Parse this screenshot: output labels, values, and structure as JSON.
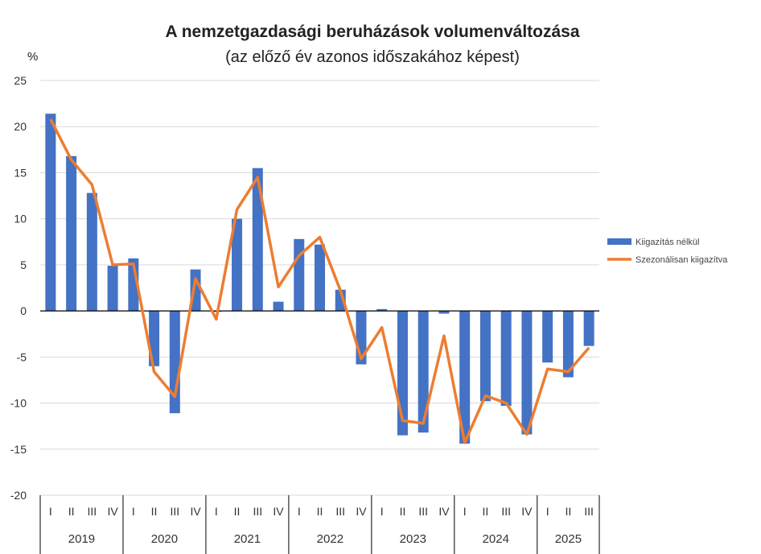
{
  "chart_data": {
    "type": "bar+line",
    "title": "A nemzetgazdasági beruházások volumenváltozása",
    "subtitle": "(az előző év azonos időszakához képest)",
    "ylabel": "%",
    "ylim": [
      -20,
      25
    ],
    "yticks": [
      25,
      20,
      15,
      10,
      5,
      0,
      -5,
      -10,
      -15,
      -20
    ],
    "grid": true,
    "legend_position": "bottom",
    "years": [
      "2019",
      "2020",
      "2021",
      "2022",
      "2023",
      "2024",
      "2025"
    ],
    "quarters_per_year": [
      4,
      4,
      4,
      4,
      4,
      4,
      3
    ],
    "categories": [
      "I",
      "II",
      "III",
      "IV",
      "I",
      "II",
      "III",
      "IV",
      "I",
      "II",
      "III",
      "IV",
      "I",
      "II",
      "III",
      "IV",
      "I",
      "II",
      "III",
      "IV",
      "I",
      "II",
      "III",
      "IV",
      "I",
      "II",
      "III"
    ],
    "series": [
      {
        "name": "Kiigazítás nélkül",
        "type": "bar",
        "color": "#4472C4",
        "values": [
          21.4,
          16.8,
          12.8,
          4.9,
          5.7,
          -6.0,
          -11.1,
          4.5,
          -0.1,
          10.0,
          15.5,
          1.0,
          7.8,
          7.2,
          2.3,
          -5.8,
          0.2,
          -13.5,
          -13.2,
          -0.3,
          -14.4,
          -9.8,
          -10.3,
          -13.4,
          -5.6,
          -7.2,
          -3.8
        ]
      },
      {
        "name": "Szezonálisan kiigazítva",
        "type": "line",
        "color": "#ED7D31",
        "values": [
          20.8,
          16.4,
          13.7,
          5.0,
          5.1,
          -6.6,
          -9.3,
          3.5,
          -0.9,
          11.0,
          14.5,
          2.6,
          6.0,
          8.0,
          2.2,
          -5.2,
          -1.8,
          -11.9,
          -12.2,
          -2.7,
          -14.3,
          -9.2,
          -10.0,
          -13.4,
          -6.3,
          -6.6,
          -4.0
        ]
      }
    ]
  }
}
